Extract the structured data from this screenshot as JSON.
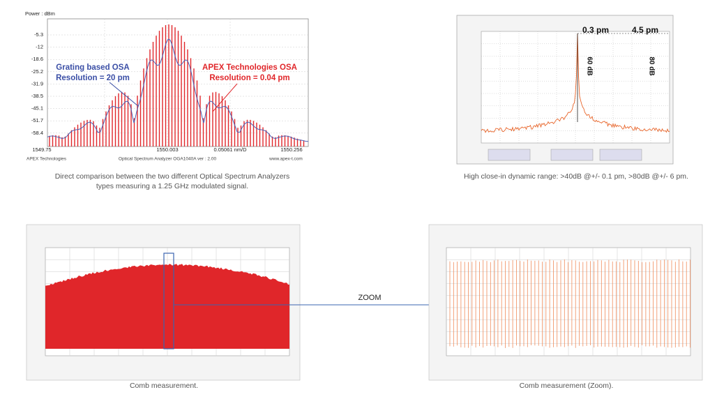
{
  "panels": [
    {
      "y_axis_label": "Power : dBm",
      "y_ticks": [
        "-5.3",
        "-12",
        "-18.6",
        "-25.2",
        "-31.9",
        "-38.5",
        "-45.1",
        "-51.7",
        "-58.4"
      ],
      "x_ticks": [
        "1549.75",
        "1550.003",
        "0.05061 nm/D",
        "1550.256"
      ],
      "footer": [
        "APEX Technologies",
        "Optical Spectrum Analyzer OGA1040A  ver : 2.00",
        "www.apex-t.com"
      ],
      "annotations": [
        {
          "lines": [
            "Grating based OSA",
            "Resolution = 20 pm"
          ]
        },
        {
          "lines": [
            "APEX Technologies OSA",
            "Resolution = 0.04 pm"
          ]
        }
      ],
      "caption": [
        "Direct comparison between the two different Optical Spectrum Analyzers",
        "types measuring a 1.25 GHz modulated signal."
      ]
    },
    {
      "labels": [
        "0.3 pm",
        "4.5 pm",
        "60 dB",
        "80 dB"
      ],
      "caption": "High close-in dynamic range: >40dB @+/- 0.1 pm, >80dB @+/- 6 pm."
    },
    {
      "caption": "Comb measurement."
    },
    {
      "caption": "Comb measurement (Zoom)."
    }
  ],
  "zoom_label": "ZOOM"
}
